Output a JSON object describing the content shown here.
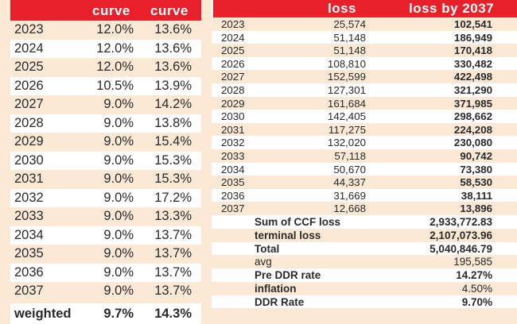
{
  "left_table": {
    "headers": [
      "",
      "curve",
      "curve"
    ],
    "rows": [
      {
        "year": "2023",
        "a": "12.0%",
        "b": "13.6%"
      },
      {
        "year": "2024",
        "a": "12.0%",
        "b": "13.6%"
      },
      {
        "year": "2025",
        "a": "12.0%",
        "b": "13.6%"
      },
      {
        "year": "2026",
        "a": "10.5%",
        "b": "13.9%"
      },
      {
        "year": "2027",
        "a": "9.0%",
        "b": "14.2%"
      },
      {
        "year": "2028",
        "a": "9.0%",
        "b": "13.8%"
      },
      {
        "year": "2029",
        "a": "9.0%",
        "b": "15.4%"
      },
      {
        "year": "2030",
        "a": "9.0%",
        "b": "15.3%"
      },
      {
        "year": "2031",
        "a": "9.0%",
        "b": "15.3%"
      },
      {
        "year": "2032",
        "a": "9.0%",
        "b": "17.2%"
      },
      {
        "year": "2033",
        "a": "9.0%",
        "b": "13.3%"
      },
      {
        "year": "2034",
        "a": "9.0%",
        "b": "13.7%"
      },
      {
        "year": "2035",
        "a": "9.0%",
        "b": "13.7%"
      },
      {
        "year": "2036",
        "a": "9.0%",
        "b": "13.7%"
      },
      {
        "year": "2037",
        "a": "9.0%",
        "b": "13.7%"
      }
    ],
    "total": {
      "label": "weighted",
      "a": "9.7%",
      "b": "14.3%"
    }
  },
  "right_table": {
    "headers": [
      "",
      "loss",
      "loss by 2037"
    ],
    "rows": [
      {
        "year": "2023",
        "loss": "25,574",
        "cum": "102,541"
      },
      {
        "year": "2024",
        "loss": "51,148",
        "cum": "186,949"
      },
      {
        "year": "2025",
        "loss": "51,148",
        "cum": "170,418"
      },
      {
        "year": "2026",
        "loss": "108,810",
        "cum": "330,482"
      },
      {
        "year": "2027",
        "loss": "152,599",
        "cum": "422,498"
      },
      {
        "year": "2028",
        "loss": "127,301",
        "cum": "321,290"
      },
      {
        "year": "2029",
        "loss": "161,684",
        "cum": "371,985"
      },
      {
        "year": "2030",
        "loss": "142,405",
        "cum": "298,662"
      },
      {
        "year": "2031",
        "loss": "117,275",
        "cum": "224,208"
      },
      {
        "year": "2032",
        "loss": "132,020",
        "cum": "230,080"
      },
      {
        "year": "2033",
        "loss": "57,118",
        "cum": "90,742"
      },
      {
        "year": "2034",
        "loss": "50,670",
        "cum": "73,380"
      },
      {
        "year": "2035",
        "loss": "44,337",
        "cum": "58,530"
      },
      {
        "year": "2036",
        "loss": "31,669",
        "cum": "38,111"
      },
      {
        "year": "2037",
        "loss": "12,668",
        "cum": "13,896"
      }
    ],
    "summary": [
      {
        "label": "Sum of CCF loss",
        "value": "2,933,772.83",
        "bold_label": true,
        "bold_value": true
      },
      {
        "label": "terminal loss",
        "value": "2,107,073.96",
        "bold_label": true,
        "bold_value": true
      },
      {
        "label": "Total",
        "value": "5,040,846.79",
        "bold_label": true,
        "bold_value": true
      },
      {
        "label": "avg",
        "value": "195,585",
        "bold_label": false,
        "bold_value": false
      },
      {
        "label": "Pre DDR rate",
        "value": "14.27%",
        "bold_label": true,
        "bold_value": true
      },
      {
        "label": "inflation",
        "value": "4.50%",
        "bold_label": true,
        "bold_value": false
      },
      {
        "label": "DDR Rate",
        "value": "9.70%",
        "bold_label": true,
        "bold_value": true
      }
    ]
  },
  "colors": {
    "header_red": "#e8202a",
    "band": "#fbe9d6",
    "white": "#ffffff"
  }
}
